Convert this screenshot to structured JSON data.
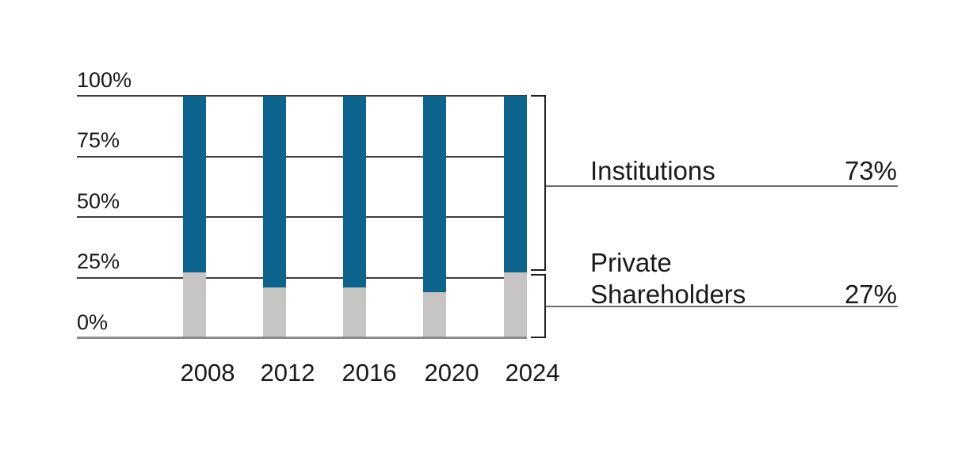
{
  "chart_data": {
    "type": "bar",
    "stacked": true,
    "title": "",
    "xlabel": "",
    "ylabel": "",
    "categories": [
      "2008",
      "2012",
      "2016",
      "2020",
      "2024"
    ],
    "series": [
      {
        "name": "Institutions",
        "color": "#0d648c",
        "values": [
          73,
          79,
          79,
          81,
          73
        ]
      },
      {
        "name": "Private Shareholders",
        "color": "#c7c5c3",
        "values": [
          27,
          21,
          21,
          19,
          27
        ]
      }
    ],
    "ylim": [
      0,
      100
    ],
    "yticks": [
      {
        "label": "100%",
        "pct": 100
      },
      {
        "label": "75%",
        "pct": 75
      },
      {
        "label": "50%",
        "pct": 50
      },
      {
        "label": "25%",
        "pct": 25
      },
      {
        "label": "0%",
        "pct": 0
      }
    ],
    "grid": "horizontal",
    "legend_position": "right",
    "legend": {
      "institutions": {
        "label": "Institutions",
        "value": "73%"
      },
      "private": {
        "line1": "Private",
        "line2": "Shareholders",
        "value": "27%"
      }
    }
  },
  "colors": {
    "institutions": "#0d648c",
    "private": "#c7c5c3",
    "gridline": "#3d3d3d",
    "baseline": "#8b8b8b",
    "bracket": "#1f1f1f",
    "underline": "#6b6b6b",
    "text": "#1a1a1a"
  }
}
